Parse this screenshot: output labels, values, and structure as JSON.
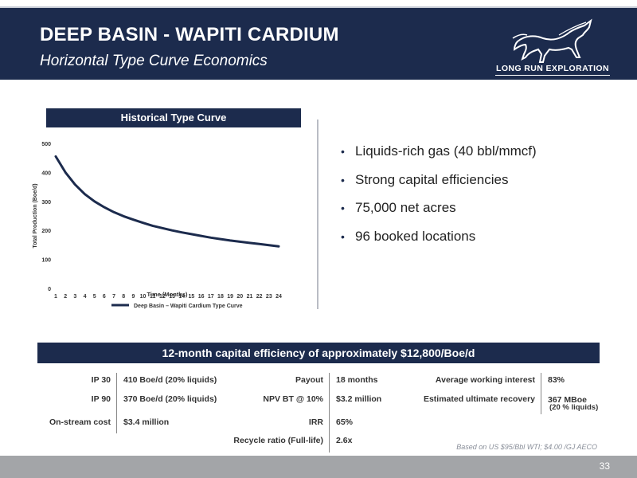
{
  "header": {
    "title": "DEEP BASIN - WAPITI CARDIUM",
    "subtitle": "Horizontal Type Curve Economics",
    "logo_text": "LONG RUN EXPLORATION"
  },
  "chart_banner": "Historical Type Curve",
  "chart_data": {
    "type": "line",
    "title": "",
    "xlabel": "Time (Months)",
    "ylabel": "Total Production (Boe/d)",
    "x": [
      1,
      2,
      3,
      4,
      5,
      6,
      7,
      8,
      9,
      10,
      11,
      12,
      13,
      14,
      15,
      16,
      17,
      18,
      19,
      20,
      21,
      22,
      23,
      24
    ],
    "y_ticks": [
      0,
      100,
      200,
      300,
      400,
      500
    ],
    "ylim": [
      0,
      500
    ],
    "series": [
      {
        "name": "Deep Basin – Wapiti Cardium Type Curve",
        "color": "#1c2b4d",
        "values": [
          455,
          400,
          358,
          325,
          300,
          280,
          263,
          249,
          237,
          226,
          216,
          208,
          200,
          193,
          187,
          181,
          175,
          170,
          165,
          161,
          157,
          153,
          149,
          145
        ]
      }
    ],
    "legend_position": "bottom",
    "grid": false
  },
  "bullets": [
    "Liquids-rich gas (40 bbl/mmcf)",
    "Strong capital efficiencies",
    "75,000 net acres",
    "96 booked locations"
  ],
  "capital_banner": "12-month capital efficiency of approximately $12,800/Boe/d",
  "table": {
    "col1": [
      {
        "label": "IP 30",
        "value": "410 Boe/d (20% liquids)"
      },
      {
        "label": "IP 90",
        "value": "370 Boe/d (20% liquids)"
      },
      {
        "label": "On-stream cost",
        "value": "$3.4 million"
      }
    ],
    "col2": [
      {
        "label": "Payout",
        "value": "18 months"
      },
      {
        "label": "NPV BT @ 10%",
        "value": "$3.2 million"
      },
      {
        "label": "IRR",
        "value": "65%"
      },
      {
        "label": "Recycle ratio (Full-life)",
        "value": "2.6x"
      }
    ],
    "col3": [
      {
        "label": "Average working interest",
        "value": "83%"
      },
      {
        "label": "Estimated ultimate recovery",
        "value": "367 MBoe",
        "sub": "(20 % liquids)"
      }
    ]
  },
  "footnote": "Based on US $95/Bbl WTI; $4.00 /GJ AECO",
  "page_number": "33"
}
